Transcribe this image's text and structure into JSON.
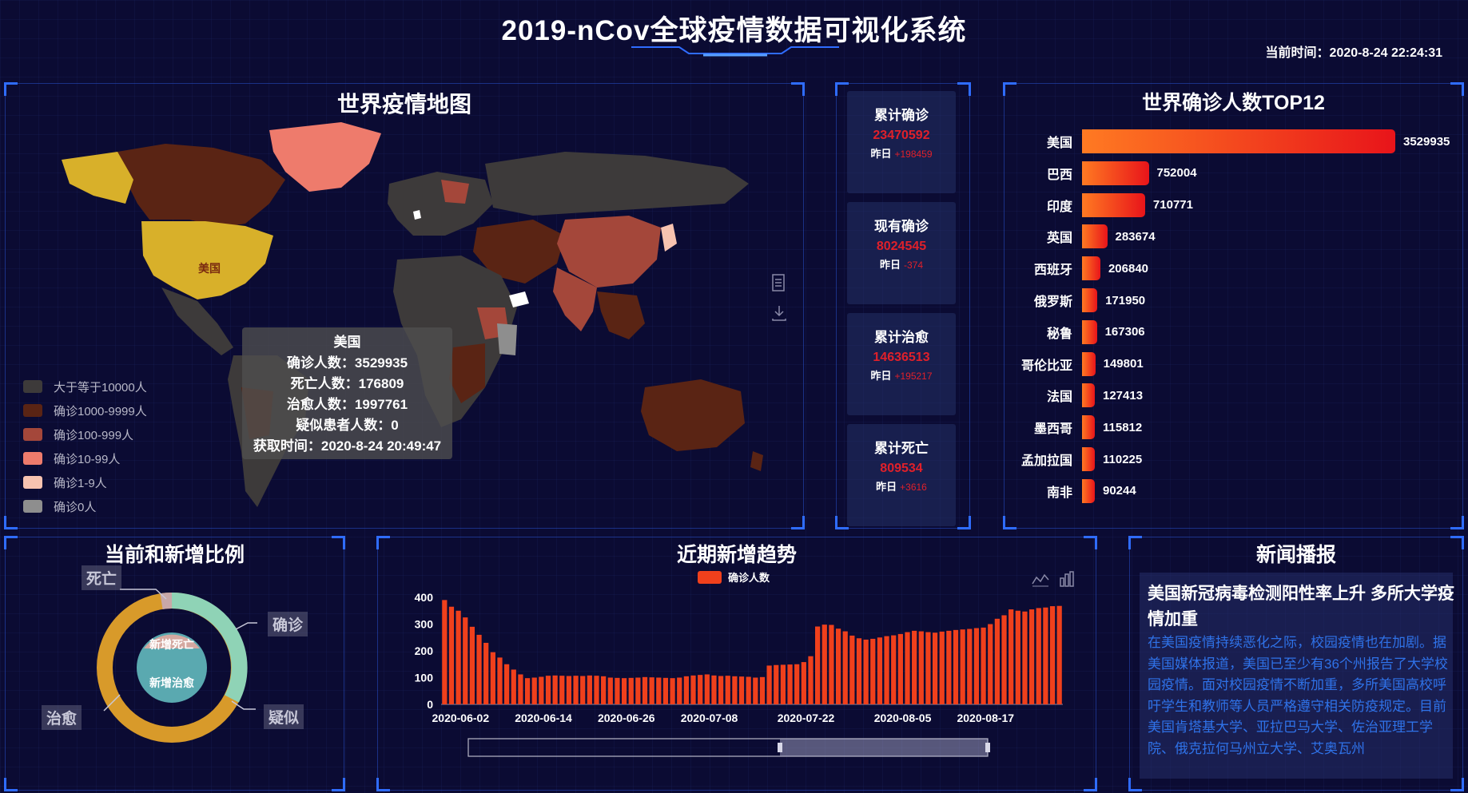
{
  "header": {
    "title": "2019-nCov全球疫情数据可视化系统",
    "current_time": "当前时间：2020-8-24 22:24:31"
  },
  "map_panel": {
    "title": "世界疫情地图",
    "highlight_label": "美国",
    "legend": [
      {
        "label": "大于等于10000人",
        "color": "#3d3a3a"
      },
      {
        "label": "确诊1000-9999人",
        "color": "#5a2414"
      },
      {
        "label": "确诊100-999人",
        "color": "#a4473a"
      },
      {
        "label": "确诊10-99人",
        "color": "#ee7b6c"
      },
      {
        "label": "确诊1-9人",
        "color": "#f7c3b0"
      },
      {
        "label": "确诊0人",
        "color": "#8e8e8e"
      }
    ],
    "tooltip": {
      "country": "美国",
      "confirmed": "确诊人数：3529935",
      "deaths": "死亡人数：176809",
      "cured": "治愈人数：1997761",
      "suspected": "疑似患者人数：0",
      "fetched": "获取时间：2020-8-24 20:49:47"
    },
    "tool_icons": [
      "data-view-icon",
      "download-icon"
    ]
  },
  "stats": [
    {
      "label": "累计确诊",
      "value": "23470592",
      "delta_label": "昨日",
      "delta": "+198459"
    },
    {
      "label": "现有确诊",
      "value": "8024545",
      "delta_label": "昨日",
      "delta": "-374"
    },
    {
      "label": "累计治愈",
      "value": "14636513",
      "delta_label": "昨日",
      "delta": "+195217"
    },
    {
      "label": "累计死亡",
      "value": "809534",
      "delta_label": "昨日",
      "delta": "+3616"
    }
  ],
  "top12": {
    "title": "世界确诊人数TOP12",
    "items": [
      {
        "country": "美国",
        "value": 3529935
      },
      {
        "country": "巴西",
        "value": 752004
      },
      {
        "country": "印度",
        "value": 710771
      },
      {
        "country": "英国",
        "value": 283674
      },
      {
        "country": "西班牙",
        "value": 206840
      },
      {
        "country": "俄罗斯",
        "value": 171950
      },
      {
        "country": "秘鲁",
        "value": 167306
      },
      {
        "country": "哥伦比亚",
        "value": 149801
      },
      {
        "country": "法国",
        "value": 127413
      },
      {
        "country": "墨西哥",
        "value": 115812
      },
      {
        "country": "孟加拉国",
        "value": 110225
      },
      {
        "country": "南非",
        "value": 90244
      }
    ]
  },
  "ratio_panel": {
    "title": "当前和新增比例",
    "outer_labels": {
      "death": "死亡",
      "confirm": "确诊",
      "cure": "治愈",
      "suspect": "疑似"
    },
    "inner_labels": {
      "new_death": "新增死亡",
      "new_cure": "新增治愈"
    },
    "outer_colors": {
      "confirm": "#8fd3b6",
      "cure": "#d89a2a",
      "death": "#c8a8a8"
    },
    "inner_colors": {
      "new_cure": "#5aa9b0",
      "new_death": "#d4a8a0"
    }
  },
  "trend_panel": {
    "title": "近期新增趋势",
    "legend_label": "确诊人数",
    "tool_icons": [
      "line-chart-icon",
      "bar-chart-icon"
    ]
  },
  "chart_data": {
    "type": "bar",
    "title": "近期新增趋势",
    "legend": [
      "确诊人数"
    ],
    "ylim": [
      0,
      400
    ],
    "yticks": [
      0,
      100,
      200,
      300,
      400
    ],
    "xticks": [
      "2020-06-02",
      "2020-06-14",
      "2020-06-26",
      "2020-07-08",
      "2020-07-22",
      "2020-08-05",
      "2020-08-17"
    ],
    "series": [
      {
        "name": "确诊人数",
        "values": [
          390,
          365,
          350,
          325,
          290,
          260,
          230,
          195,
          175,
          150,
          130,
          112,
          98,
          100,
          103,
          107,
          108,
          107,
          106,
          107,
          106,
          108,
          107,
          105,
          100,
          99,
          98,
          99,
          100,
          102,
          101,
          100,
          99,
          98,
          100,
          105,
          108,
          110,
          112,
          108,
          106,
          107,
          105,
          104,
          103,
          100,
          102,
          145,
          147,
          148,
          149,
          150,
          158,
          180,
          291,
          298,
          297,
          283,
          273,
          257,
          247,
          242,
          245,
          250,
          255,
          258,
          263,
          270,
          275,
          273,
          270,
          268,
          272,
          275,
          278,
          280,
          282,
          285,
          287,
          300,
          320,
          333,
          355,
          350,
          347,
          355,
          360,
          362,
          367,
          368
        ]
      }
    ],
    "bar_color": "#f0401c",
    "zoom_range": [
      0.6,
      1.0
    ]
  },
  "news_panel": {
    "title": "新闻播报",
    "headline": "美国新冠病毒检测阳性率上升 多所大学疫情加重",
    "body": "在美国疫情持续恶化之际，校园疫情也在加剧。据美国媒体报道，美国已至少有36个州报告了大学校园疫情。面对校园疫情不断加重，多所美国高校呼吁学生和教师等人员严格遵守相关防疫规定。目前美国肯塔基大学、亚拉巴马大学、佐治亚理工学院、俄克拉何马州立大学、艾奥瓦州"
  }
}
